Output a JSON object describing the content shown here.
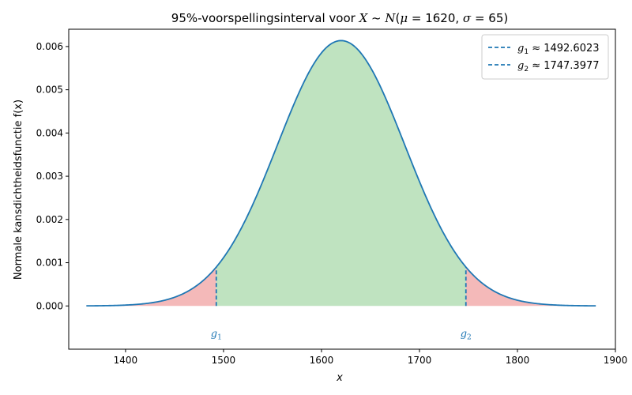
{
  "chart_data": {
    "type": "area",
    "title": "95%-voorspellingsinterval voor X ~ N(μ = 1620, σ = 65)",
    "title_parts": {
      "prefix": "95%-voorspellingsinterval voor ",
      "var": "X",
      "tilde": " ~ ",
      "dist": "N",
      "open": "(",
      "mu": "μ",
      "eq1": " = 1620, ",
      "sigma": "σ",
      "eq2": " = 65)"
    },
    "xlabel": "x",
    "ylabel": "Normale kansdichtheidsfunctie f(x)",
    "mu": 1620,
    "sigma": 65,
    "x_range": [
      1360,
      1880
    ],
    "xlim": [
      1342,
      1900
    ],
    "ylim": [
      -0.001,
      0.0064
    ],
    "x_ticks": [
      1400,
      1500,
      1600,
      1700,
      1800,
      1900
    ],
    "y_ticks": [
      0.0,
      0.001,
      0.002,
      0.003,
      0.004,
      0.005,
      0.006
    ],
    "x_tick_labels": [
      "1400",
      "1500",
      "1600",
      "1700",
      "1800",
      "1900"
    ],
    "y_tick_labels": [
      "0.000",
      "0.001",
      "0.002",
      "0.003",
      "0.004",
      "0.005",
      "0.006"
    ],
    "g1": 1492.6023,
    "g2": 1747.3977,
    "g1_label": "g1",
    "g2_label": "g2",
    "legend": [
      {
        "symbol": "g",
        "sub": "1",
        "text": " ≈ 1492.6023"
      },
      {
        "symbol": "g",
        "sub": "2",
        "text": " ≈ 1747.3977"
      }
    ],
    "legend_position": "top-right",
    "grid": false,
    "colors": {
      "curve": "#1f77b4",
      "center_fill": "#bfe3c0",
      "tail_fill": "#f4b9b9",
      "boundary": "#1f77b4",
      "annotation": "#1f77b4"
    }
  }
}
